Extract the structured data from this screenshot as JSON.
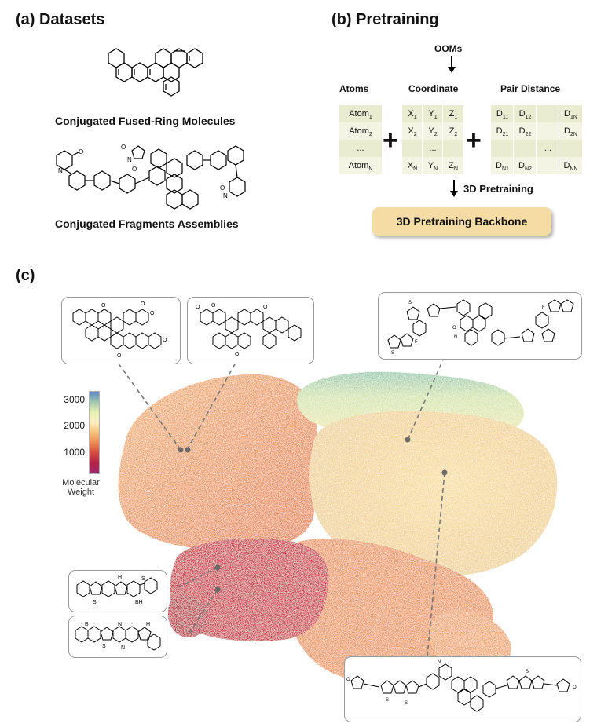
{
  "panel_a": {
    "title": "(a) Datasets",
    "caption_top": "Conjugated Fused-Ring Molecules",
    "caption_bottom": "Conjugated Fragments Assemblies"
  },
  "panel_b": {
    "title": "(b) Pretraining",
    "ooms_label": "OOMs",
    "atoms_header": "Atoms",
    "coordinate_header": "Coordinate",
    "pair_distance_header": "Pair Distance",
    "atoms": [
      {
        "base": "Atom",
        "sub": "1"
      },
      {
        "base": "Atom",
        "sub": "2"
      },
      {
        "base": "...",
        "sub": ""
      },
      {
        "base": "Atom",
        "sub": "N"
      }
    ],
    "coordinates": [
      [
        {
          "base": "X",
          "sub": "1"
        },
        {
          "base": "Y",
          "sub": "1"
        },
        {
          "base": "Z",
          "sub": "1"
        }
      ],
      [
        {
          "base": "X",
          "sub": "2"
        },
        {
          "base": "Y",
          "sub": "2"
        },
        {
          "base": "Z",
          "sub": "2"
        }
      ],
      [
        {
          "base": "",
          "sub": ""
        },
        {
          "base": "...",
          "sub": ""
        },
        {
          "base": "",
          "sub": ""
        }
      ],
      [
        {
          "base": "X",
          "sub": "N"
        },
        {
          "base": "Y",
          "sub": "N"
        },
        {
          "base": "Z",
          "sub": "N"
        }
      ]
    ],
    "distances": [
      [
        {
          "base": "D",
          "sub": "11"
        },
        {
          "base": "D",
          "sub": "12"
        },
        {
          "base": "",
          "sub": ""
        },
        {
          "base": "D",
          "sub": "1N"
        }
      ],
      [
        {
          "base": "D",
          "sub": "21"
        },
        {
          "base": "D",
          "sub": "22"
        },
        {
          "base": "",
          "sub": ""
        },
        {
          "base": "D",
          "sub": "2N"
        }
      ],
      [
        {
          "base": "",
          "sub": ""
        },
        {
          "base": "",
          "sub": ""
        },
        {
          "base": "...",
          "sub": ""
        },
        {
          "base": "",
          "sub": ""
        }
      ],
      [
        {
          "base": "D",
          "sub": "N1"
        },
        {
          "base": "D",
          "sub": "N2"
        },
        {
          "base": "",
          "sub": ""
        },
        {
          "base": "D",
          "sub": "NN"
        }
      ]
    ],
    "pretraining_label": "3D Pretraining",
    "backbone_label": "3D Pretraining Backbone"
  },
  "panel_c": {
    "title": "(c)",
    "colorbar": {
      "ticks": [
        "3000",
        "2000",
        "1000"
      ],
      "label_line1": "Molecular",
      "label_line2": "Weight",
      "colors": [
        "#5c86c4",
        "#9fc8b0",
        "#e6efb0",
        "#fbeec0",
        "#f6c07a",
        "#ec8a55",
        "#d24a3f",
        "#b2224a",
        "#9c2a6e"
      ]
    },
    "point_colors": {
      "deep_red": "#c8202c",
      "orange": "#ea8c4a",
      "light_orange": "#f2b46a",
      "yellow": "#f6dc90",
      "pale_yellow": "#eeeba6",
      "green": "#b6d6a0",
      "teal": "#6fb6a6"
    }
  }
}
